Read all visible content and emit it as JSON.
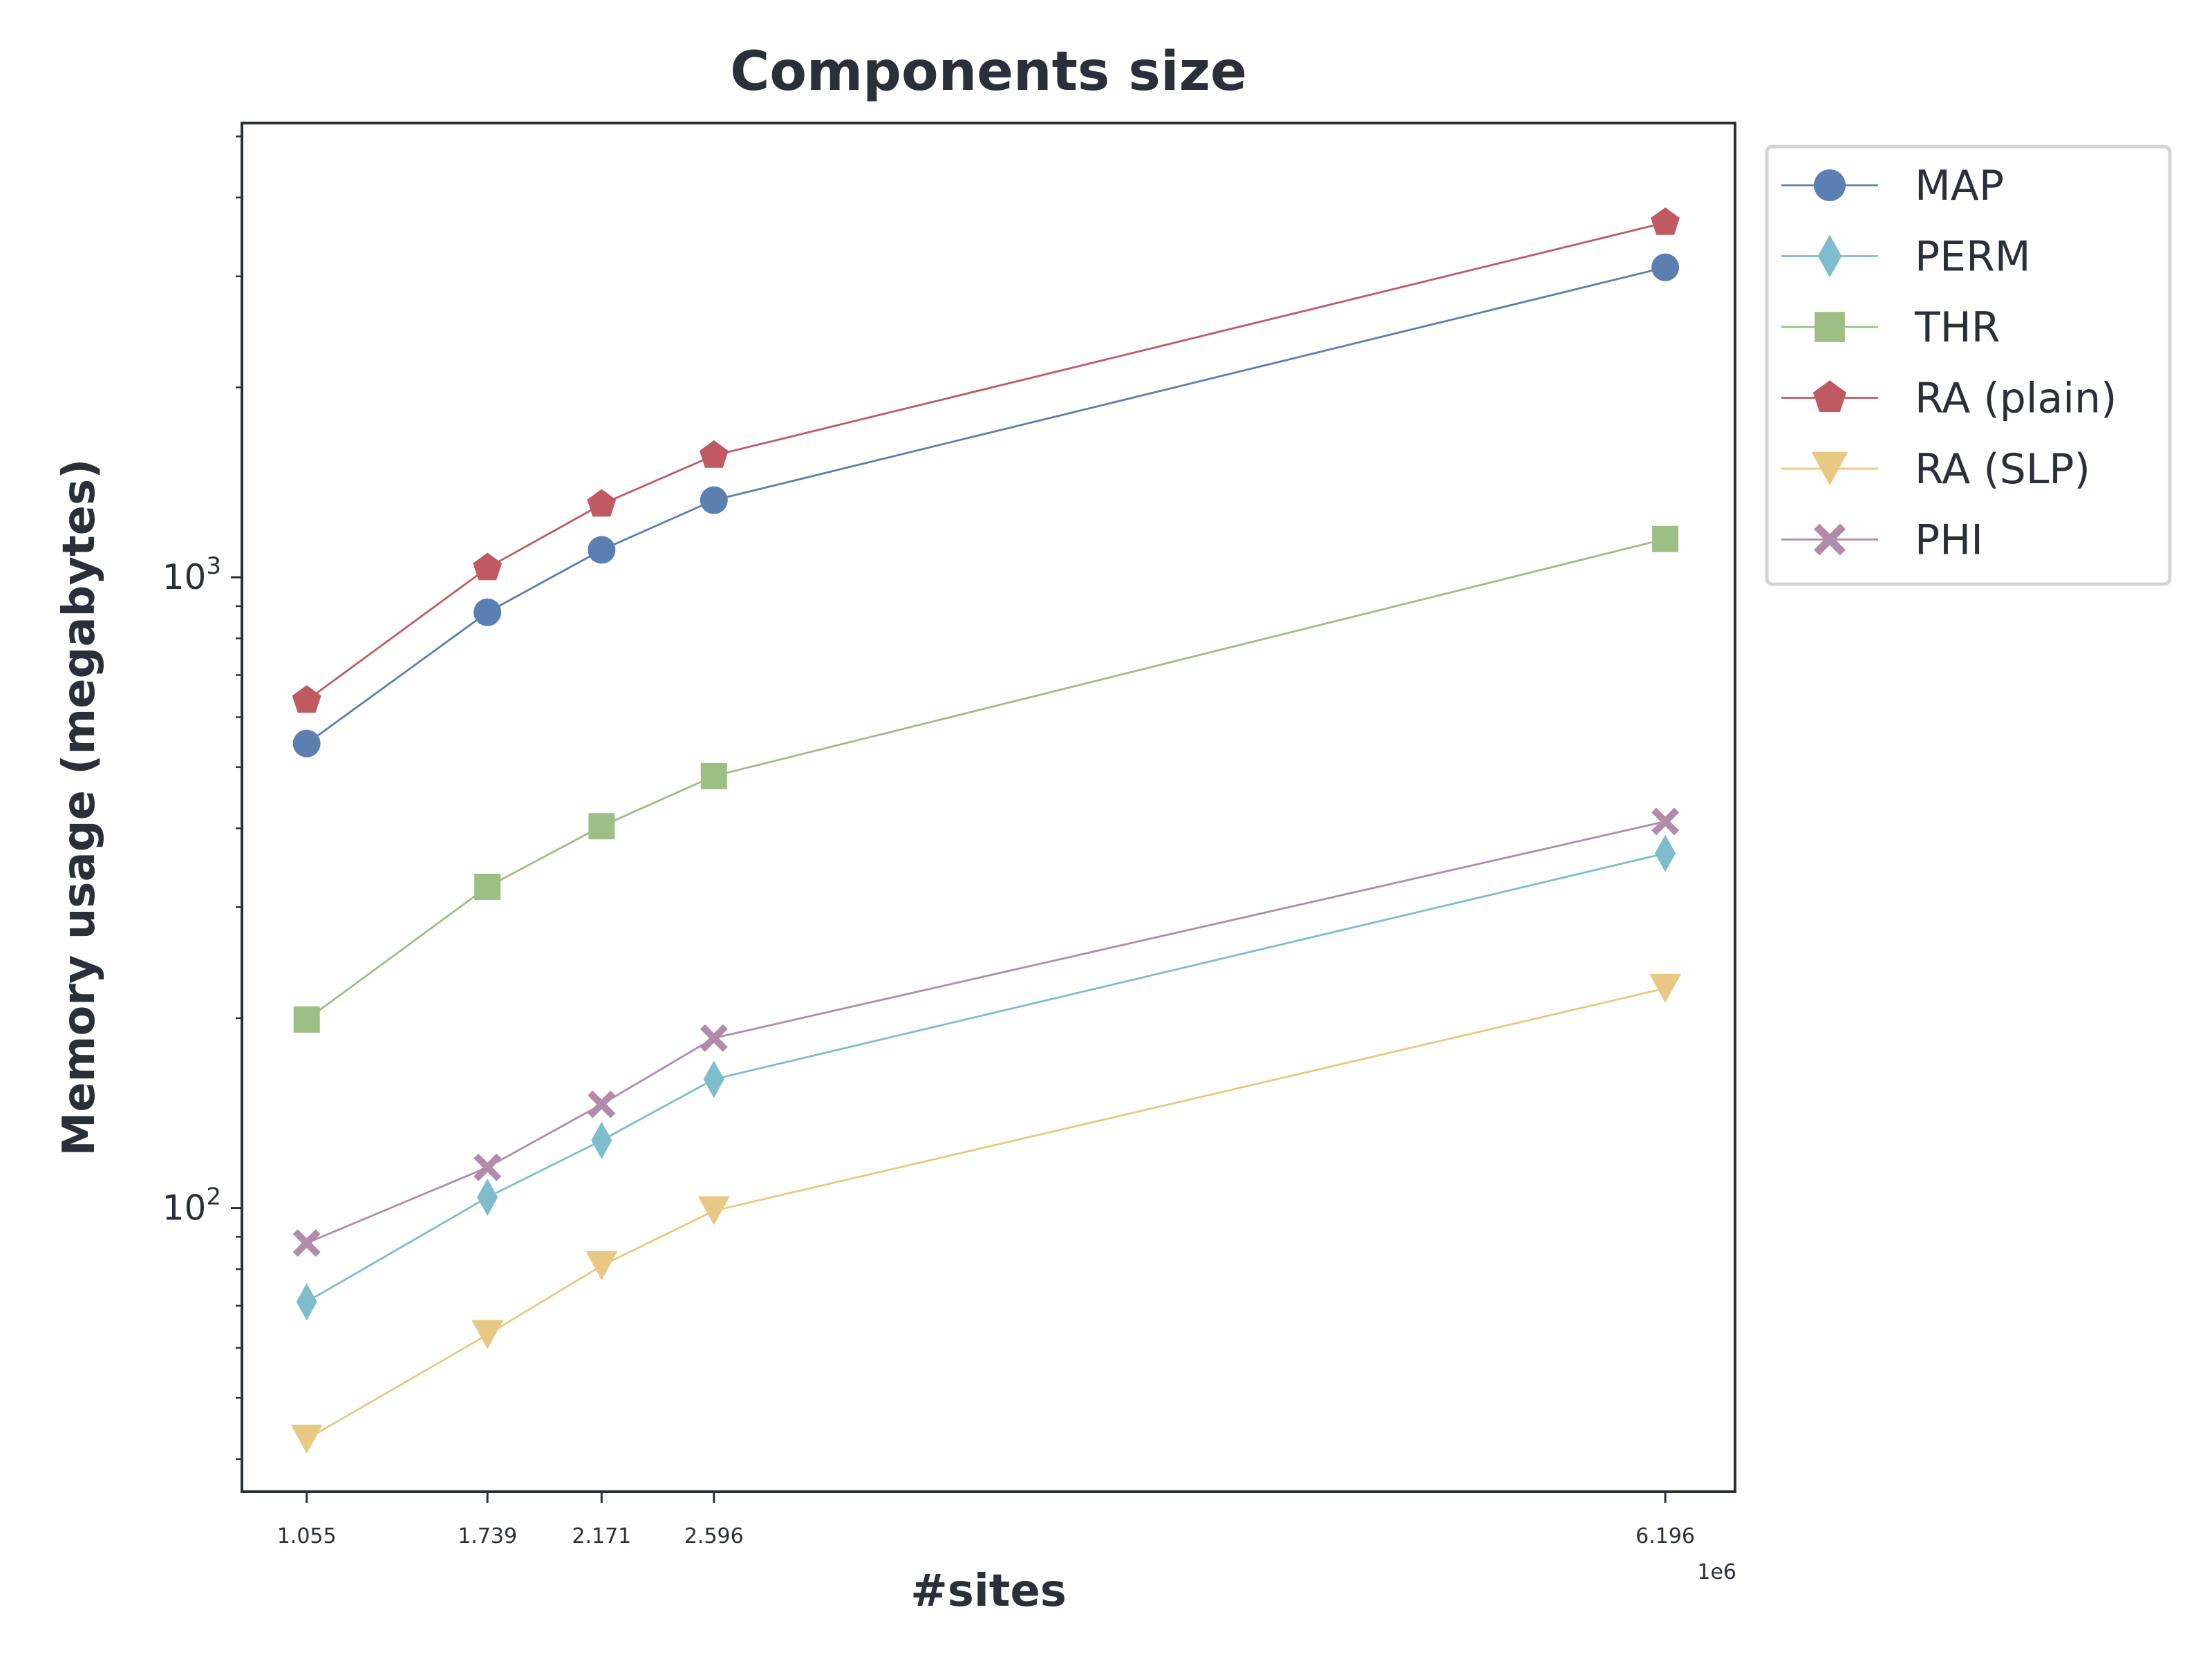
{
  "chart_data": {
    "type": "line",
    "title": "Components size",
    "xlabel": "#sites",
    "ylabel": "Memory usage (megabytes)",
    "x_offset_label": "1e6",
    "x_tick_labels": [
      "1.055",
      "1.739",
      "2.171",
      "2.596",
      "6.196"
    ],
    "x": [
      1.055,
      1.739,
      2.171,
      2.596,
      6.196
    ],
    "xlim": [
      0.81,
      6.46
    ],
    "ylim": [
      35.5,
      5250
    ],
    "yscale": "log",
    "y_ticks": [
      {
        "value": 100,
        "base": "10",
        "exp": "2"
      },
      {
        "value": 1000,
        "base": "10",
        "exp": "3"
      }
    ],
    "grid": false,
    "legend_position": "outside-top-right",
    "series": [
      {
        "name": "MAP",
        "color": "#5a7fb0",
        "marker": "circle",
        "values": [
          545,
          880,
          1105,
          1325,
          3100
        ]
      },
      {
        "name": "PERM",
        "color": "#7fbccc",
        "marker": "thin-diamond",
        "values": [
          71,
          104,
          128,
          160,
          365
        ]
      },
      {
        "name": "THR",
        "color": "#9dbf86",
        "marker": "square",
        "values": [
          199,
          323,
          403,
          484,
          1150
        ]
      },
      {
        "name": "RA (plain)",
        "color": "#c05a62",
        "marker": "pentagon",
        "values": [
          638,
          1035,
          1305,
          1560,
          3650
        ]
      },
      {
        "name": "RA (SLP)",
        "color": "#e9c883",
        "marker": "triangle-down",
        "values": [
          43,
          63,
          81,
          99,
          223
        ]
      },
      {
        "name": "PHI",
        "color": "#b28aaa",
        "marker": "x-filled",
        "values": [
          88,
          116,
          146,
          186,
          410
        ]
      }
    ]
  }
}
